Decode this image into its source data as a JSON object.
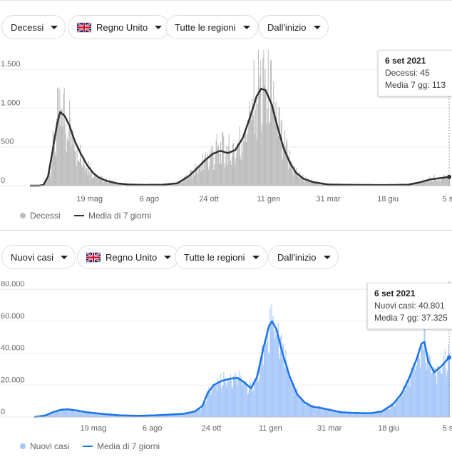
{
  "panels": [
    {
      "filters": {
        "metric": "Decessi",
        "country": "Regno Unito",
        "region": "Tutte le regioni",
        "range": "Dall'inizio"
      },
      "tooltip": {
        "date": "6 set 2021",
        "line1": "Decessi: 45",
        "line2": "Media 7 gg: 113"
      },
      "legend": {
        "bars_label": "Decessi",
        "line_label": "Media di 7 giorni"
      }
    },
    {
      "filters": {
        "metric": "Nuovi casi",
        "country": "Regno Unito",
        "region": "Tutte le regioni",
        "range": "Dall'inizio"
      },
      "tooltip": {
        "date": "6 set 2021",
        "line1": "Nuovi casi: 40.801",
        "line2": "Media 7 gg: 37.325"
      },
      "legend": {
        "bars_label": "Nuovi casi",
        "line_label": "Media di 7 giorni"
      }
    }
  ],
  "colors": {
    "deaths_bar": "#bdbdbd",
    "deaths_line": "#303134",
    "cases_bar": "#a8c7fa",
    "cases_line": "#1a73e8",
    "grid": "#e8eaed",
    "flag_blue": "#012169",
    "flag_red": "#c8102e"
  },
  "chart_data": [
    {
      "type": "bar",
      "title": "Decessi",
      "xlabel": "",
      "ylabel": "",
      "x_tick_labels": [
        "19 mag",
        "6 ago",
        "24 ott",
        "11 gen",
        "31 mar",
        "18 giu",
        "5 s"
      ],
      "x_tick_days": [
        79,
        158,
        237,
        316,
        395,
        474,
        553
      ],
      "y_ticks": [
        0,
        500,
        1000,
        1500
      ],
      "y_tick_labels": [
        "0",
        "500",
        "1.000",
        "1.500"
      ],
      "ylim": [
        0,
        1750
      ],
      "x_range_days": [
        0,
        555
      ],
      "avg_keypoints": [
        [
          0,
          0
        ],
        [
          12,
          0
        ],
        [
          18,
          10
        ],
        [
          24,
          120
        ],
        [
          30,
          450
        ],
        [
          36,
          800
        ],
        [
          40,
          950
        ],
        [
          46,
          900
        ],
        [
          52,
          780
        ],
        [
          60,
          560
        ],
        [
          68,
          400
        ],
        [
          76,
          260
        ],
        [
          84,
          160
        ],
        [
          92,
          100
        ],
        [
          102,
          60
        ],
        [
          115,
          30
        ],
        [
          130,
          15
        ],
        [
          150,
          10
        ],
        [
          175,
          12
        ],
        [
          195,
          30
        ],
        [
          210,
          120
        ],
        [
          222,
          230
        ],
        [
          232,
          330
        ],
        [
          242,
          410
        ],
        [
          252,
          450
        ],
        [
          262,
          420
        ],
        [
          272,
          460
        ],
        [
          282,
          620
        ],
        [
          292,
          900
        ],
        [
          300,
          1150
        ],
        [
          306,
          1250
        ],
        [
          312,
          1230
        ],
        [
          320,
          1050
        ],
        [
          328,
          750
        ],
        [
          336,
          480
        ],
        [
          344,
          300
        ],
        [
          352,
          170
        ],
        [
          362,
          90
        ],
        [
          375,
          45
        ],
        [
          395,
          15
        ],
        [
          430,
          10
        ],
        [
          470,
          8
        ],
        [
          500,
          12
        ],
        [
          515,
          40
        ],
        [
          530,
          80
        ],
        [
          545,
          100
        ],
        [
          555,
          113
        ]
      ],
      "series": [
        {
          "name": "Decessi",
          "kind": "bars"
        },
        {
          "name": "Media di 7 giorni",
          "kind": "line"
        }
      ],
      "highlight": {
        "date": "6 set 2021",
        "value": 45,
        "avg": 113
      }
    },
    {
      "type": "bar",
      "title": "Nuovi casi",
      "xlabel": "",
      "ylabel": "",
      "x_tick_labels": [
        "19 mag",
        "6 ago",
        "24 ott",
        "11 gen",
        "31 mar",
        "18 giu",
        "5 s"
      ],
      "x_tick_days": [
        79,
        158,
        237,
        316,
        395,
        474,
        553
      ],
      "y_ticks": [
        0,
        20000,
        40000,
        60000,
        80000
      ],
      "y_tick_labels": [
        "0",
        "20.000",
        "40.000",
        "60.000",
        "80.000"
      ],
      "ylim": [
        0,
        85000
      ],
      "x_range_days": [
        0,
        555
      ],
      "avg_keypoints": [
        [
          0,
          0
        ],
        [
          15,
          1000
        ],
        [
          25,
          3000
        ],
        [
          35,
          4500
        ],
        [
          45,
          4800
        ],
        [
          55,
          4200
        ],
        [
          70,
          3000
        ],
        [
          90,
          2000
        ],
        [
          115,
          1000
        ],
        [
          140,
          800
        ],
        [
          160,
          1000
        ],
        [
          180,
          1500
        ],
        [
          200,
          2000
        ],
        [
          215,
          3500
        ],
        [
          225,
          7000
        ],
        [
          232,
          15000
        ],
        [
          240,
          20000
        ],
        [
          250,
          22500
        ],
        [
          262,
          24000
        ],
        [
          272,
          24500
        ],
        [
          280,
          22000
        ],
        [
          290,
          18000
        ],
        [
          298,
          25000
        ],
        [
          306,
          42000
        ],
        [
          314,
          57000
        ],
        [
          318,
          60000
        ],
        [
          324,
          55000
        ],
        [
          332,
          40000
        ],
        [
          342,
          25000
        ],
        [
          352,
          14000
        ],
        [
          362,
          9000
        ],
        [
          372,
          6500
        ],
        [
          385,
          5500
        ],
        [
          400,
          4000
        ],
        [
          410,
          3000
        ],
        [
          430,
          2500
        ],
        [
          450,
          2400
        ],
        [
          465,
          3500
        ],
        [
          480,
          8000
        ],
        [
          492,
          15000
        ],
        [
          502,
          25000
        ],
        [
          512,
          37000
        ],
        [
          518,
          46000
        ],
        [
          522,
          47000
        ],
        [
          527,
          35000
        ],
        [
          535,
          28000
        ],
        [
          545,
          32000
        ],
        [
          555,
          37325
        ]
      ],
      "series": [
        {
          "name": "Nuovi casi",
          "kind": "bars"
        },
        {
          "name": "Media di 7 giorni",
          "kind": "line"
        }
      ],
      "highlight": {
        "date": "6 set 2021",
        "value": 40801,
        "avg": 37325
      }
    }
  ]
}
